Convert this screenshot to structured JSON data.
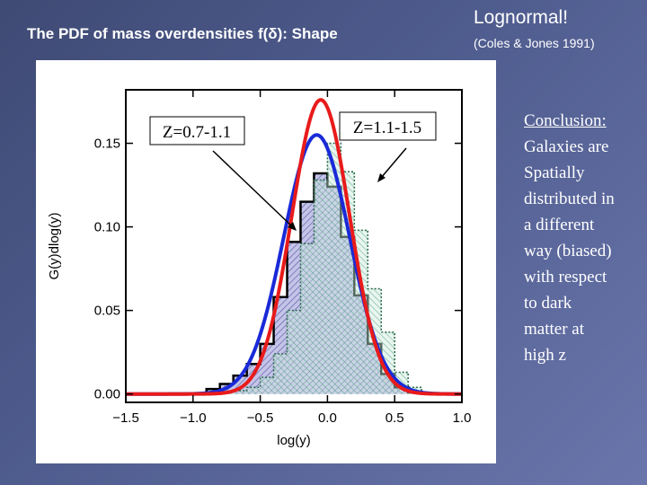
{
  "slide": {
    "title": "The PDF of mass overdensities f(δ): Shape",
    "lognormal_title": "Lognormal!",
    "citation": "(Coles & Jones 1991)"
  },
  "conclusion": {
    "heading": "Conclusion:",
    "lines": [
      "Galaxies are",
      "Spatially",
      "distributed in",
      "a different",
      "way (biased)",
      "with respect",
      "to dark",
      "matter at",
      "high z"
    ]
  },
  "colors": {
    "red_curve": "#e81b1b",
    "blue_curve": "#1a2ad8",
    "hist_low_z_fill": "#8080c8",
    "hist_high_z_fill": "#6cc09a"
  },
  "chart_data": {
    "type": "bar",
    "xlabel": "log(y)",
    "ylabel": "G(y)dlog(y)",
    "xlim": [
      -1.5,
      1.0
    ],
    "ylim": [
      -0.005,
      0.182
    ],
    "xticks": [
      "−1.5",
      "−1.0",
      "−0.5",
      "0.0",
      "0.5",
      "1.0"
    ],
    "yticks": [
      "0.00",
      "0.05",
      "0.10",
      "0.15"
    ],
    "xtick_values": [
      -1.5,
      -1.0,
      -0.5,
      0.0,
      0.5,
      1.0
    ],
    "ytick_values": [
      0.0,
      0.05,
      0.1,
      0.15
    ],
    "bin_edges": [
      -0.9,
      -0.8,
      -0.7,
      -0.6,
      -0.5,
      -0.4,
      -0.3,
      -0.2,
      -0.1,
      0.0,
      0.1,
      0.2,
      0.3,
      0.4,
      0.5,
      0.6,
      0.7
    ],
    "histograms": [
      {
        "label": "Z=0.7-1.1",
        "values": [
          0.003,
          0.006,
          0.011,
          0.018,
          0.03,
          0.058,
          0.091,
          0.115,
          0.132,
          0.124,
          0.094,
          0.059,
          0.03,
          0.012,
          0.004,
          0.001
        ]
      },
      {
        "label": "Z=1.1-1.5",
        "values": [
          0.0,
          0.001,
          0.002,
          0.004,
          0.01,
          0.024,
          0.05,
          0.09,
          0.128,
          0.15,
          0.133,
          0.098,
          0.063,
          0.037,
          0.013,
          0.004
        ]
      }
    ],
    "curves": [
      {
        "color": "red",
        "mu": -0.05,
        "sigma": 0.215,
        "peak": 0.176
      },
      {
        "color": "blue",
        "mu": -0.08,
        "sigma": 0.245,
        "peak": 0.155
      }
    ],
    "annotations": [
      {
        "text": "Z=0.7-1.1",
        "points_to": "Z=0.7-1.1"
      },
      {
        "text": "Z=1.1-1.5",
        "points_to": "Z=1.1-1.5"
      }
    ]
  }
}
